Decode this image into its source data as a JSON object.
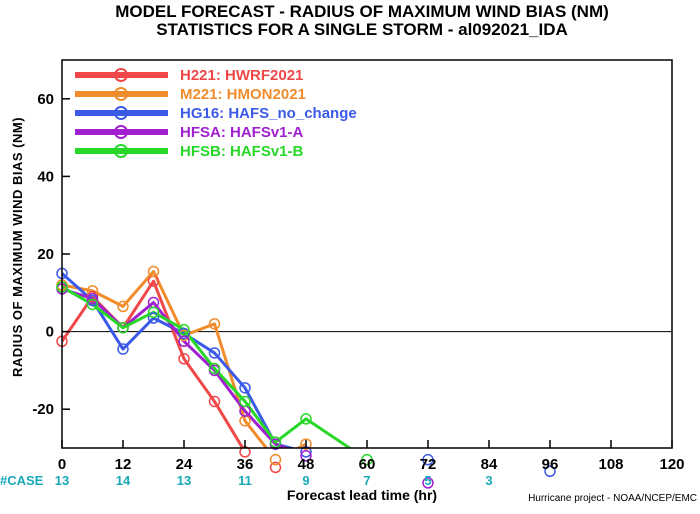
{
  "title_line1": "MODEL FORECAST - RADIUS OF MAXIMUM WIND BIAS (NM)",
  "title_line2": "STATISTICS FOR A SINGLE STORM - al092021_IDA",
  "xlabel": "Forecast lead time (hr)",
  "ylabel": "RADIUS OF MAXIMUM WIND BIAS (NM)",
  "case_label": "#CASE",
  "case_counts": [
    "13",
    "14",
    "13",
    "11",
    "9",
    "7",
    "5",
    "3"
  ],
  "case_hours": [
    0,
    12,
    24,
    36,
    48,
    60,
    72,
    84
  ],
  "credit": "Hurricane project - NOAA/NCEP/EMC",
  "colors": {
    "case": "#18a8b8",
    "axis": "#000000",
    "zero_line": "#000000"
  },
  "chart_data": {
    "type": "line",
    "xlim": [
      0,
      120
    ],
    "ylim": [
      -30,
      70
    ],
    "x_ticks": [
      0,
      12,
      24,
      36,
      48,
      60,
      72,
      84,
      96,
      108,
      120
    ],
    "y_ticks": [
      -20,
      0,
      20,
      40,
      60
    ],
    "x_tick_labels": [
      "0",
      "12",
      "24",
      "36",
      "48",
      "60",
      "72",
      "84",
      "96",
      "108",
      "120"
    ],
    "y_tick_labels": [
      "-20",
      "0",
      "20",
      "40",
      "60"
    ],
    "grid": false,
    "zero_line": true,
    "legend_position": "top-left",
    "series": [
      {
        "name": "H221: HWRF2021",
        "color": "#f04848",
        "x": [
          0,
          6,
          12,
          18,
          24,
          30,
          36,
          42
        ],
        "y": [
          -2.5,
          9,
          1,
          13,
          -7,
          -18,
          -31,
          -35
        ]
      },
      {
        "name": "M221: HMON2021",
        "color": "#f08c2c",
        "x": [
          0,
          6,
          12,
          18,
          24,
          30,
          36,
          42,
          48
        ],
        "y": [
          12,
          10.5,
          6.5,
          15.5,
          -1,
          2,
          -23,
          -33,
          -29
        ]
      },
      {
        "name": "HG16: HAFS_no_change",
        "color": "#3c5ae8",
        "x": [
          0,
          6,
          12,
          18,
          24,
          30,
          36,
          42,
          48,
          72,
          96
        ],
        "y": [
          15,
          8,
          -4.5,
          3.5,
          -0.5,
          -5.5,
          -14.5,
          -29,
          -31,
          -33,
          -36
        ]
      },
      {
        "name": "HFSA: HAFSv1-A",
        "color": "#a020d0",
        "x": [
          0,
          6,
          12,
          18,
          24,
          30,
          36,
          42,
          48,
          72
        ],
        "y": [
          11,
          8.5,
          1,
          7.5,
          -2.5,
          -10,
          -20.5,
          -29,
          -32,
          -39
        ]
      },
      {
        "name": "HFSB: HAFSv1-B",
        "color": "#28d828",
        "x": [
          0,
          6,
          12,
          18,
          24,
          30,
          36,
          42,
          48,
          60
        ],
        "y": [
          11.5,
          7,
          1,
          5,
          0.5,
          -9.5,
          -18,
          -28.5,
          -22.5,
          -33
        ]
      }
    ]
  }
}
